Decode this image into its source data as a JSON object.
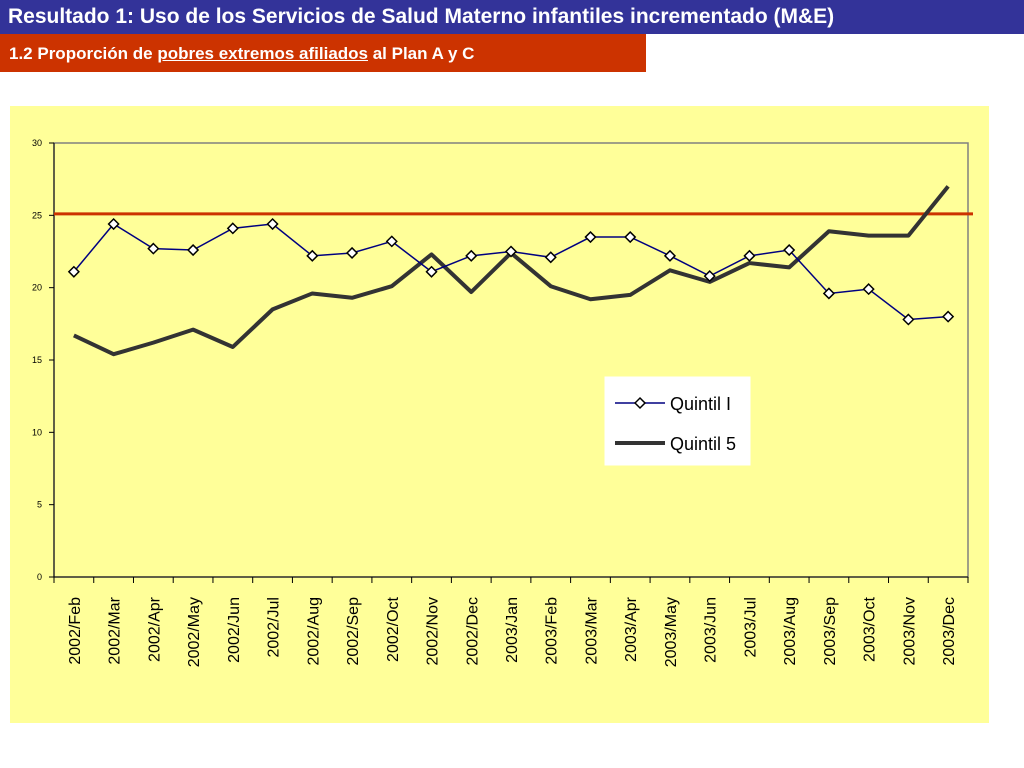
{
  "header": {
    "title": "Resultado 1: Uso de los Servicios de Salud Materno infantiles incrementado (M&E)",
    "subtitle_prefix": "1.2 Proporción de ",
    "subtitle_underlined": "pobres extremos afiliados",
    "subtitle_suffix": " al Plan A y C"
  },
  "colors": {
    "title_bg": "#333399",
    "subtitle_bg": "#cc3300",
    "panel_bg": "#ffff99",
    "quintil1": "#000080",
    "quintil5": "#333333",
    "reference_line": "#cc3300"
  },
  "chart_data": {
    "type": "line",
    "title": "",
    "xlabel": "",
    "ylabel": "",
    "ylim": [
      0,
      30
    ],
    "yticks": [
      0,
      5,
      10,
      15,
      20,
      25,
      30
    ],
    "grid": false,
    "legend_position": "center-right",
    "categories": [
      "2002/Feb",
      "2002/Mar",
      "2002/Apr",
      "2002/May",
      "2002/Jun",
      "2002/Jul",
      "2002/Aug",
      "2002/Sep",
      "2002/Oct",
      "2002/Nov",
      "2002/Dec",
      "2003/Jan",
      "2003/Feb",
      "2003/Mar",
      "2003/Apr",
      "2003/May",
      "2003/Jun",
      "2003/Jul",
      "2003/Aug",
      "2003/Sep",
      "2003/Oct",
      "2003/Nov",
      "2003/Dec"
    ],
    "series": [
      {
        "name": "Quintil I",
        "marker": "diamond",
        "values": [
          21.1,
          24.4,
          22.7,
          22.6,
          24.1,
          24.4,
          22.2,
          22.4,
          23.2,
          21.1,
          22.2,
          22.5,
          22.1,
          23.5,
          23.5,
          22.2,
          20.8,
          22.2,
          22.6,
          19.6,
          19.9,
          17.8,
          18.0
        ]
      },
      {
        "name": "Quintil 5",
        "marker": "none",
        "values": [
          16.7,
          15.4,
          16.2,
          17.1,
          15.9,
          18.5,
          19.6,
          19.3,
          20.1,
          22.3,
          19.7,
          22.4,
          20.1,
          19.2,
          19.5,
          21.2,
          20.4,
          21.7,
          21.4,
          23.9,
          23.6,
          23.6,
          27.0
        ]
      }
    ],
    "reference_line": {
      "y": 25.1
    }
  }
}
